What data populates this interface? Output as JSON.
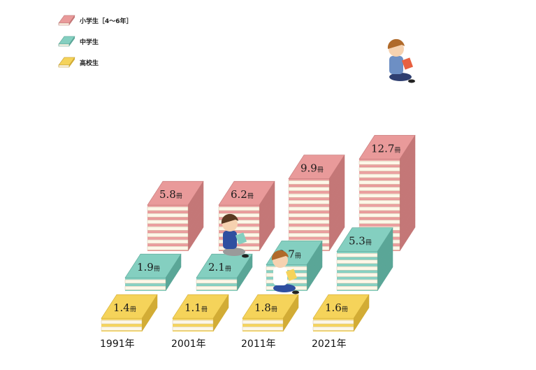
{
  "chart_data": {
    "type": "bar",
    "categories": [
      "1991年",
      "2001年",
      "2011年",
      "2021年"
    ],
    "unit": "冊",
    "series": [
      {
        "name": "小学生［4〜6年］",
        "values": [
          5.8,
          6.2,
          9.9,
          12.7
        ],
        "color": "#e99a9a",
        "side": "#c47777"
      },
      {
        "name": "中学生",
        "values": [
          1.9,
          2.1,
          3.7,
          5.3
        ],
        "color": "#84cfc0",
        "side": "#5aa697"
      },
      {
        "name": "高校生",
        "values": [
          1.4,
          1.1,
          1.8,
          1.6
        ],
        "color": "#f5d35a",
        "side": "#d2ac35"
      }
    ],
    "legend": "top-left",
    "grid": false,
    "illustration": "stacked-books-with-reading-children"
  }
}
